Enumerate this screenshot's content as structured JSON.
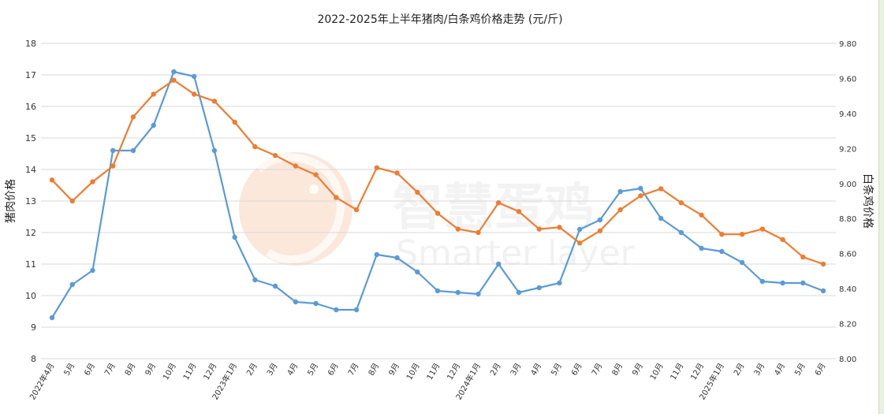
{
  "chart_data": {
    "type": "line",
    "title": "2022-2025年上半年猪肉/白条鸡价格走势 (元/斤)",
    "ylabel": "猪肉价格",
    "y2label": "白条鸡价格",
    "ylim": [
      8,
      18
    ],
    "y2lim": [
      8.0,
      9.8
    ],
    "yticks": [
      "8",
      "9",
      "10",
      "11",
      "12",
      "13",
      "14",
      "15",
      "16",
      "17",
      "18"
    ],
    "y2ticks": [
      "8.00",
      "8.20",
      "8.40",
      "8.60",
      "8.80",
      "9.00",
      "9.20",
      "9.40",
      "9.60",
      "9.80"
    ],
    "grid": true,
    "categories": [
      "2022年4月",
      "5月",
      "6月",
      "7月",
      "8月",
      "9月",
      "10月",
      "11月",
      "12月",
      "2023年1月",
      "2月",
      "3月",
      "4月",
      "5月",
      "6月",
      "7月",
      "8月",
      "9月",
      "10月",
      "11月",
      "12月",
      "2024年1月",
      "2月",
      "3月",
      "4月",
      "5月",
      "6月",
      "7月",
      "8月",
      "9月",
      "10月",
      "11月",
      "12月",
      "2025年1月",
      "2月",
      "3月",
      "4月",
      "5月",
      "6月"
    ],
    "series": [
      {
        "axis": "left",
        "color": "#5b9bd5",
        "values": [
          9.3,
          10.35,
          10.8,
          14.6,
          14.6,
          15.4,
          17.1,
          16.95,
          14.6,
          11.85,
          10.5,
          10.3,
          9.8,
          9.75,
          9.55,
          9.55,
          11.3,
          11.2,
          10.75,
          10.15,
          10.1,
          10.05,
          11.0,
          10.1,
          10.25,
          10.4,
          12.1,
          12.4,
          13.3,
          13.4,
          12.45,
          12.0,
          11.5,
          11.4,
          11.05,
          10.45,
          10.4,
          10.4,
          10.15
        ]
      },
      {
        "axis": "right",
        "color": "#ed7d31",
        "values": [
          9.02,
          8.9,
          9.01,
          9.1,
          9.38,
          9.51,
          9.59,
          9.51,
          9.47,
          9.35,
          9.21,
          9.16,
          9.1,
          9.05,
          8.92,
          8.85,
          9.09,
          9.06,
          8.95,
          8.83,
          8.74,
          8.72,
          8.89,
          8.84,
          8.74,
          8.75,
          8.66,
          8.73,
          8.85,
          8.93,
          8.97,
          8.89,
          8.82,
          8.71,
          8.71,
          8.74,
          8.68,
          8.58,
          8.54
        ]
      }
    ],
    "watermark": {
      "cn_text": "智慧蛋鸡",
      "en_text": "Smarter layer",
      "color": "#f6c8a5"
    }
  }
}
